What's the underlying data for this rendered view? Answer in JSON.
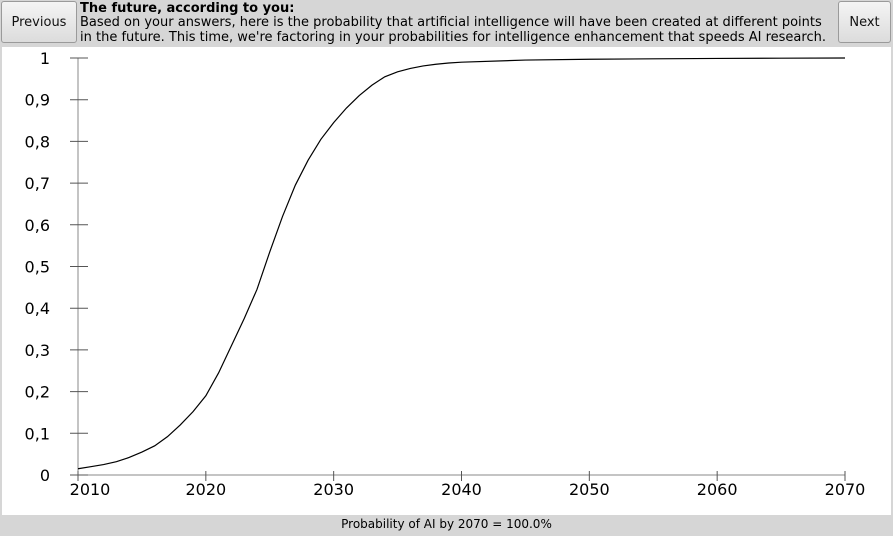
{
  "header": {
    "previous": "Previous",
    "title": "The future, according to you:",
    "description": "Based on your answers, here is the probability that artificial intelligence will have been created at different points in the future. This time, we're factoring in your probabilities for intelligence enhancement that speeds AI research.",
    "next": "Next"
  },
  "chart_data": {
    "type": "line",
    "x": [
      2010,
      2011,
      2012,
      2013,
      2014,
      2015,
      2016,
      2017,
      2018,
      2019,
      2020,
      2021,
      2022,
      2023,
      2024,
      2025,
      2026,
      2027,
      2028,
      2029,
      2030,
      2031,
      2032,
      2033,
      2034,
      2035,
      2036,
      2037,
      2038,
      2039,
      2040,
      2045,
      2050,
      2055,
      2060,
      2065,
      2070
    ],
    "values": [
      0.015,
      0.02,
      0.025,
      0.032,
      0.042,
      0.055,
      0.07,
      0.092,
      0.12,
      0.152,
      0.19,
      0.245,
      0.31,
      0.375,
      0.445,
      0.535,
      0.62,
      0.695,
      0.755,
      0.805,
      0.845,
      0.88,
      0.91,
      0.935,
      0.955,
      0.967,
      0.975,
      0.981,
      0.985,
      0.988,
      0.99,
      0.995,
      0.997,
      0.998,
      0.999,
      0.9995,
      1
    ],
    "color": "#000000",
    "xlim": [
      2010,
      2070
    ],
    "xticks": [
      2010,
      2020,
      2030,
      2040,
      2050,
      2060,
      2070
    ],
    "ylim": [
      0,
      1
    ],
    "yticks": [
      0,
      {
        "value": 0.1,
        "label": "0,1"
      },
      {
        "value": 0.2,
        "label": "0,2"
      },
      {
        "value": 0.3,
        "label": "0,3"
      },
      {
        "value": 0.4,
        "label": "0,4"
      },
      {
        "value": 0.5,
        "label": "0,5"
      },
      {
        "value": 0.6,
        "label": "0,6"
      },
      {
        "value": 0.7,
        "label": "0,7"
      },
      {
        "value": 0.8,
        "label": "0,8"
      },
      {
        "value": 0.9,
        "label": "0,9"
      },
      1
    ]
  },
  "footer": "Probability of AI by 2070 = 100.0%"
}
